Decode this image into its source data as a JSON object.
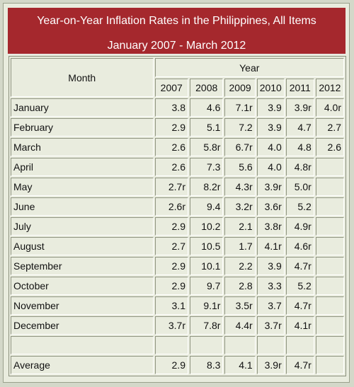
{
  "title": "Year-on-Year Inflation Rates in the Philippines, All Items",
  "subtitle": "January 2007 - March  2012",
  "table": {
    "month_header": "Month",
    "year_header": "Year",
    "years": [
      "2007",
      "2008",
      "2009",
      "2010",
      "2011",
      "2012"
    ],
    "rows": [
      {
        "month": "January",
        "values": [
          "3.8",
          "4.6",
          "7.1r",
          "3.9",
          "3.9r",
          "4.0r"
        ]
      },
      {
        "month": "February",
        "values": [
          "2.9",
          "5.1",
          "7.2",
          "3.9",
          "4.7",
          "2.7"
        ]
      },
      {
        "month": "March",
        "values": [
          "2.6",
          "5.8r",
          "6.7r",
          "4.0",
          "4.8",
          "2.6"
        ]
      },
      {
        "month": "April",
        "values": [
          "2.6",
          "7.3",
          "5.6",
          "4.0",
          "4.8r",
          ""
        ]
      },
      {
        "month": "May",
        "values": [
          "2.7r",
          "8.2r",
          "4.3r",
          "3.9r",
          "5.0r",
          ""
        ]
      },
      {
        "month": "June",
        "values": [
          "2.6r",
          "9.4",
          "3.2r",
          "3.6r",
          "5.2",
          ""
        ]
      },
      {
        "month": "July",
        "values": [
          "2.9",
          "10.2",
          "2.1",
          "3.8r",
          "4.9r",
          ""
        ]
      },
      {
        "month": "August",
        "values": [
          "2.7",
          "10.5",
          "1.7",
          "4.1r",
          "4.6r",
          ""
        ]
      },
      {
        "month": "September",
        "values": [
          "2.9",
          "10.1",
          "2.2",
          "3.9",
          "4.7r",
          ""
        ]
      },
      {
        "month": "October",
        "values": [
          "2.9",
          "9.7",
          "2.8",
          "3.3",
          "5.2",
          ""
        ]
      },
      {
        "month": "November",
        "values": [
          "3.1",
          "9.1r",
          "3.5r",
          "3.7",
          "4.7r",
          ""
        ]
      },
      {
        "month": "December",
        "values": [
          "3.7r",
          "7.8r",
          "4.4r",
          "3.7r",
          "4.1r",
          ""
        ]
      }
    ],
    "average": {
      "label": "Average",
      "values": [
        "2.9",
        "8.3",
        "4.1",
        "3.9r",
        "4.7r",
        ""
      ]
    }
  },
  "chart_data": {
    "type": "table",
    "title": "Year-on-Year Inflation Rates in the Philippines, All Items",
    "subtitle": "January 2007 - March  2012",
    "columns": [
      "Month",
      "2007",
      "2008",
      "2009",
      "2010",
      "2011",
      "2012"
    ],
    "rows": [
      [
        "January",
        "3.8",
        "4.6",
        "7.1r",
        "3.9",
        "3.9r",
        "4.0r"
      ],
      [
        "February",
        "2.9",
        "5.1",
        "7.2",
        "3.9",
        "4.7",
        "2.7"
      ],
      [
        "March",
        "2.6",
        "5.8r",
        "6.7r",
        "4.0",
        "4.8",
        "2.6"
      ],
      [
        "April",
        "2.6",
        "7.3",
        "5.6",
        "4.0",
        "4.8r",
        ""
      ],
      [
        "May",
        "2.7r",
        "8.2r",
        "4.3r",
        "3.9r",
        "5.0r",
        ""
      ],
      [
        "June",
        "2.6r",
        "9.4",
        "3.2r",
        "3.6r",
        "5.2",
        ""
      ],
      [
        "July",
        "2.9",
        "10.2",
        "2.1",
        "3.8r",
        "4.9r",
        ""
      ],
      [
        "August",
        "2.7",
        "10.5",
        "1.7",
        "4.1r",
        "4.6r",
        ""
      ],
      [
        "September",
        "2.9",
        "10.1",
        "2.2",
        "3.9",
        "4.7r",
        ""
      ],
      [
        "October",
        "2.9",
        "9.7",
        "2.8",
        "3.3",
        "5.2",
        ""
      ],
      [
        "November",
        "3.1",
        "9.1r",
        "3.5r",
        "3.7",
        "4.7r",
        ""
      ],
      [
        "December",
        "3.7r",
        "7.8r",
        "4.4r",
        "3.7r",
        "4.1r",
        ""
      ],
      [
        "",
        "",
        "",
        "",
        "",
        "",
        ""
      ],
      [
        "Average",
        "2.9",
        "8.3",
        "4.1",
        "3.9r",
        "4.7r",
        ""
      ]
    ]
  },
  "colors": {
    "title_background": "#a5282d",
    "title_text": "#ffffff",
    "table_background": "#e9ecde",
    "page_background": "#d4d8c9"
  }
}
